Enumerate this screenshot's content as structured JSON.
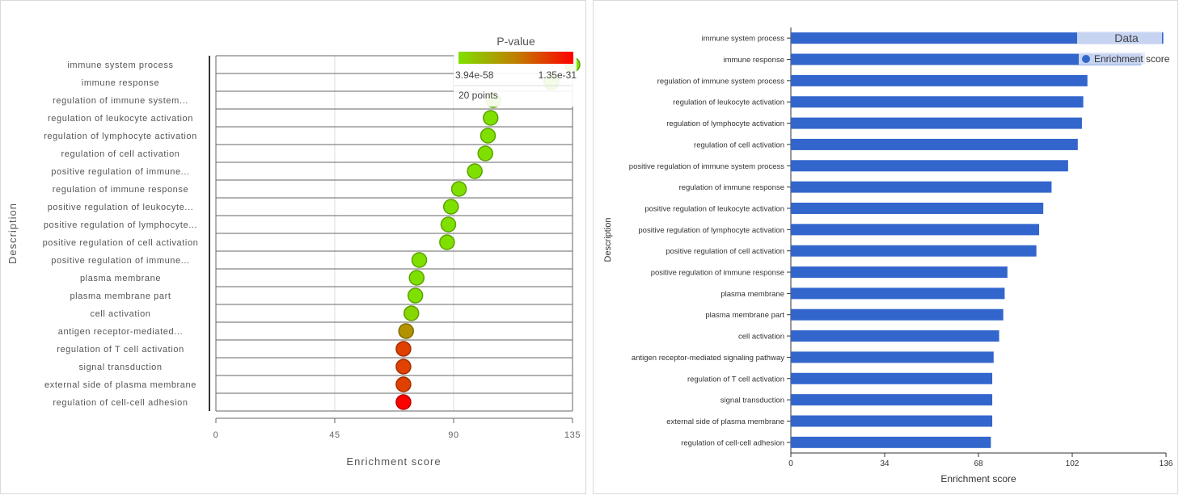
{
  "chart_data": [
    {
      "type": "scatter",
      "xlabel": "Enrichment score",
      "ylabel": "Description",
      "xlim": [
        0,
        135
      ],
      "xticks": [
        "0",
        "45",
        "90",
        "135"
      ],
      "categories": [
        "immune system process",
        "immune response",
        "regulation of immune system...",
        "regulation of leukocyte activation",
        "regulation of lymphocyte activation",
        "regulation of cell activation",
        "positive regulation of immune...",
        "regulation of immune response",
        "positive regulation of leukocyte...",
        "positive regulation of lymphocyte...",
        "positive regulation of cell activation",
        "positive regulation of immune...",
        "plasma membrane",
        "plasma membrane part",
        "cell activation",
        "antigen receptor-mediated...",
        "regulation of T cell activation",
        "signal transduction",
        "external side of plasma membrane",
        "regulation of cell-cell adhesion"
      ],
      "values": [
        135,
        127,
        105,
        104,
        103,
        102,
        98,
        92,
        89,
        88,
        87.5,
        77,
        76,
        75.5,
        74,
        72,
        71,
        71,
        71,
        71
      ],
      "color_norm": [
        0.0,
        0.0,
        0.0,
        0.0,
        0.0,
        0.0,
        0.0,
        0.0,
        0.0,
        0.0,
        0.0,
        0.0,
        0.0,
        0.0,
        0.05,
        0.4,
        0.75,
        0.75,
        0.75,
        1.0
      ],
      "legend": {
        "title": "P-value",
        "min_label": "3.94e-58",
        "max_label": "1.35e-31",
        "count_label": "20 points",
        "colors": [
          "#7fe000",
          "#c07f00",
          "#ff0000"
        ]
      }
    },
    {
      "type": "bar",
      "orientation": "horizontal",
      "xlabel": "Enrichment score",
      "ylabel": "Description",
      "xlim": [
        0,
        136
      ],
      "xticks": [
        "0",
        "34",
        "68",
        "102",
        "136"
      ],
      "categories": [
        "immune system process",
        "immune response",
        "regulation of immune system process",
        "regulation of leukocyte activation",
        "regulation of lymphocyte activation",
        "regulation of cell activation",
        "positive regulation of immune system process",
        "regulation of immune response",
        "positive regulation of leukocyte activation",
        "positive regulation of lymphocyte activation",
        "positive regulation of cell activation",
        "positive regulation of immune response",
        "plasma membrane",
        "plasma membrane part",
        "cell activation",
        "antigen receptor-mediated signaling pathway",
        "regulation of T cell activation",
        "signal transduction",
        "external side of plasma membrane",
        "regulation of cell-cell adhesion"
      ],
      "values": [
        135,
        127,
        107.5,
        106,
        105.5,
        104,
        100.5,
        94.5,
        91.5,
        90,
        89,
        78.5,
        77.5,
        77,
        75.5,
        73.5,
        73,
        73,
        73,
        72.5
      ],
      "color": "#3366cc",
      "legend": {
        "title": "Data",
        "entries": [
          "Enrichment score"
        ]
      }
    }
  ]
}
